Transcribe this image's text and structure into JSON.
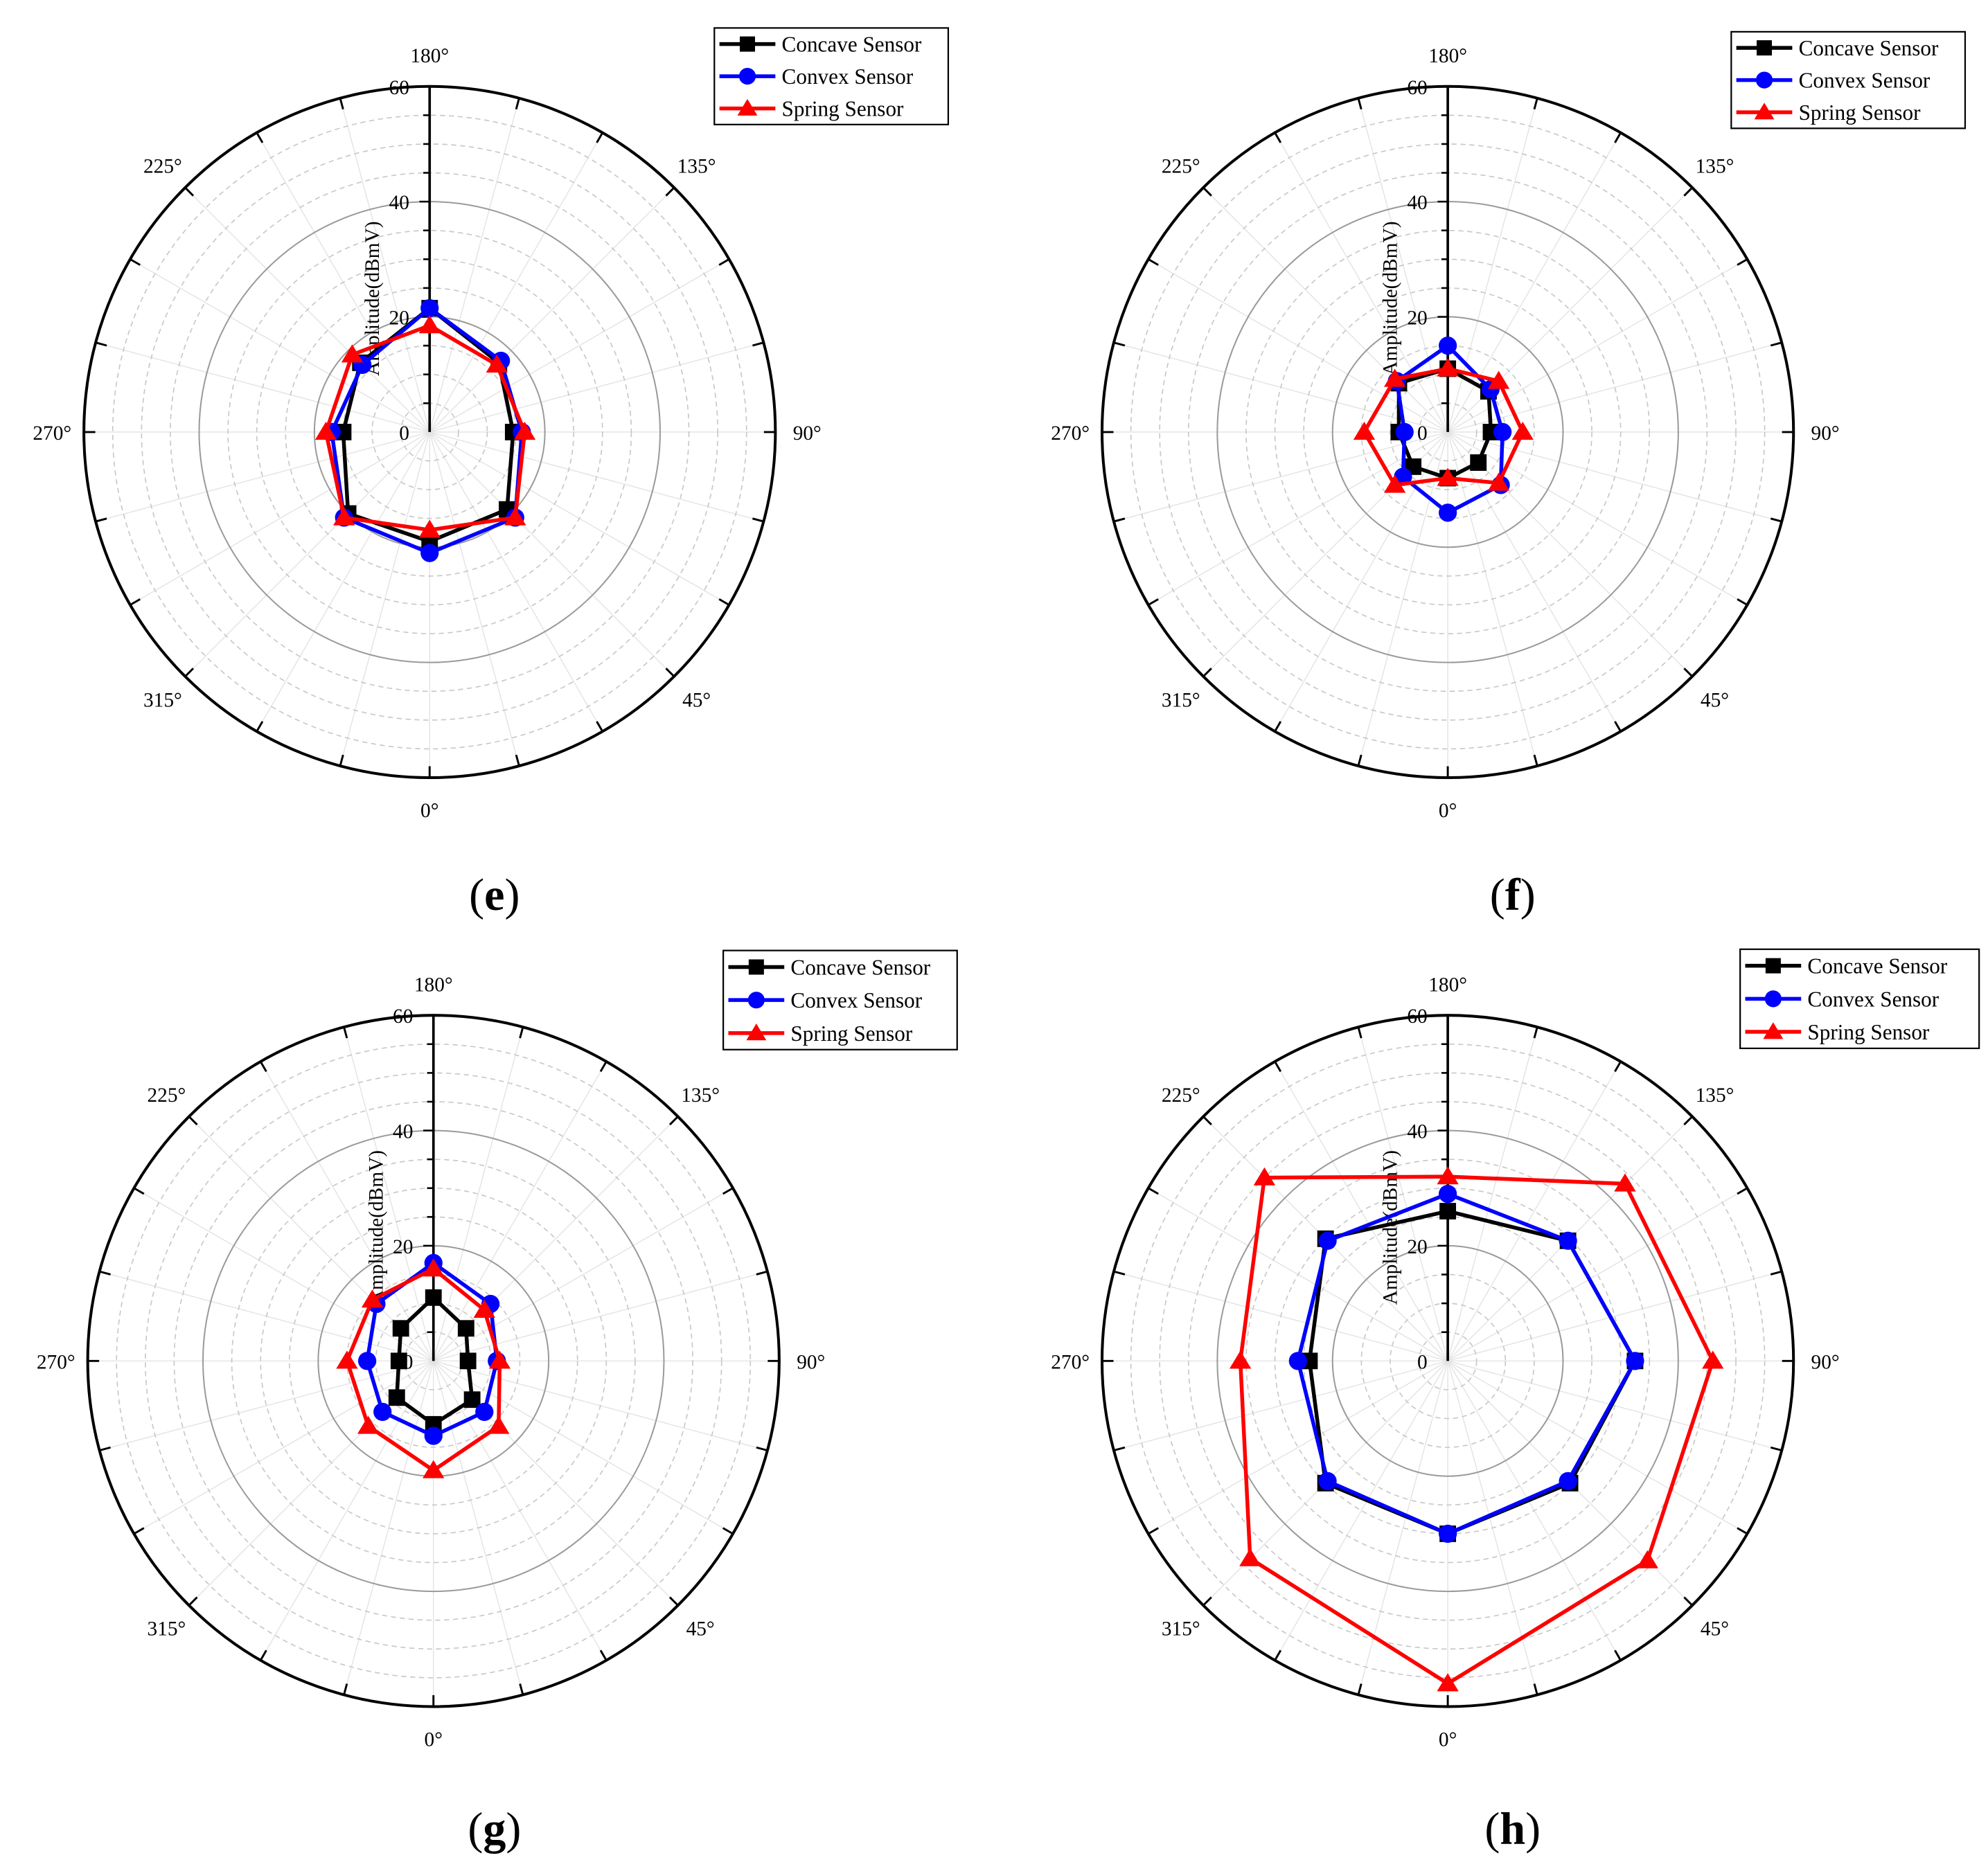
{
  "chart_data": [
    {
      "type": "polar-line",
      "panel_label": "e",
      "angle_labels": [
        "0°",
        "45°",
        "90°",
        "135°",
        "180°",
        "225°",
        "270°",
        "315°"
      ],
      "radial_ticks": [
        "0",
        "20",
        "40",
        "60"
      ],
      "rlim": [
        0,
        60
      ],
      "ylabel": "Amplitude(dBmV)",
      "legend_position": "top-right",
      "angles": [
        0,
        45,
        90,
        135,
        180,
        225,
        270,
        315
      ],
      "series": [
        {
          "name": "Concave Sensor",
          "color": "#000000",
          "marker": "square",
          "values": [
            19,
            19,
            14.5,
            17,
            21.5,
            17,
            15,
            20
          ]
        },
        {
          "name": "Convex Sensor",
          "color": "#0000ff",
          "marker": "circle",
          "values": [
            21,
            21,
            16,
            17.5,
            21.5,
            16.5,
            17,
            21
          ]
        },
        {
          "name": "Spring Sensor",
          "color": "#ff0000",
          "marker": "triangle",
          "values": [
            17,
            21,
            16.5,
            16.5,
            18.5,
            19,
            18,
            21
          ]
        }
      ]
    },
    {
      "type": "polar-line",
      "panel_label": "f",
      "angle_labels": [
        "0°",
        "45°",
        "90°",
        "135°",
        "180°",
        "225°",
        "270°",
        "315°"
      ],
      "radial_ticks": [
        "0",
        "20",
        "40",
        "60"
      ],
      "rlim": [
        0,
        60
      ],
      "ylabel": "Amplitude(dBmV)",
      "legend_position": "top-right",
      "angles": [
        0,
        45,
        90,
        135,
        180,
        225,
        270,
        315
      ],
      "series": [
        {
          "name": "Concave Sensor",
          "color": "#000000",
          "marker": "square",
          "values": [
            8,
            7.5,
            7.5,
            10,
            11,
            12,
            8.5,
            8.5
          ]
        },
        {
          "name": "Convex Sensor",
          "color": "#0000ff",
          "marker": "circle",
          "values": [
            14,
            13,
            9.5,
            10.5,
            15,
            12.5,
            7.5,
            11
          ]
        },
        {
          "name": "Spring Sensor",
          "color": "#ff0000",
          "marker": "triangle",
          "values": [
            8,
            12.5,
            13,
            12.5,
            11,
            13,
            14.5,
            13
          ]
        }
      ]
    },
    {
      "type": "polar-line",
      "panel_label": "g",
      "angle_labels": [
        "0°",
        "45°",
        "90°",
        "135°",
        "180°",
        "225°",
        "270°",
        "315°"
      ],
      "radial_ticks": [
        "0",
        "20",
        "40",
        "60"
      ],
      "rlim": [
        0,
        60
      ],
      "ylabel": "Amplitude(dBmV)",
      "legend_position": "top-right",
      "angles": [
        0,
        45,
        90,
        135,
        180,
        225,
        270,
        315
      ],
      "series": [
        {
          "name": "Concave Sensor",
          "color": "#000000",
          "marker": "square",
          "values": [
            11,
            9.5,
            6,
            8,
            11,
            8,
            6,
            9
          ]
        },
        {
          "name": "Convex Sensor",
          "color": "#0000ff",
          "marker": "circle",
          "values": [
            13,
            12.5,
            11,
            14,
            17,
            14,
            11.5,
            12.5
          ]
        },
        {
          "name": "Spring Sensor",
          "color": "#ff0000",
          "marker": "triangle",
          "values": [
            19,
            16,
            11.5,
            12.5,
            16,
            15,
            15,
            16
          ]
        }
      ]
    },
    {
      "type": "polar-line",
      "panel_label": "h",
      "angle_labels": [
        "0°",
        "45°",
        "90°",
        "135°",
        "180°",
        "225°",
        "270°",
        "315°"
      ],
      "radial_ticks": [
        "0",
        "20",
        "40",
        "60"
      ],
      "rlim": [
        0,
        60
      ],
      "ylabel": "Amplitude(dBmV)",
      "legend_position": "top-right",
      "angles": [
        0,
        45,
        90,
        135,
        180,
        225,
        270,
        315
      ],
      "series": [
        {
          "name": "Concave Sensor",
          "color": "#000000",
          "marker": "square",
          "values": [
            30,
            30,
            32.5,
            29.5,
            26,
            30,
            24,
            30
          ]
        },
        {
          "name": "Convex Sensor",
          "color": "#0000ff",
          "marker": "circle",
          "values": [
            30,
            29.5,
            32.5,
            29.5,
            29,
            29.5,
            26,
            29.5
          ]
        },
        {
          "name": "Spring Sensor",
          "color": "#ff0000",
          "marker": "triangle",
          "values": [
            56,
            49,
            46,
            43.5,
            32,
            45,
            36,
            48.5
          ]
        }
      ]
    }
  ]
}
